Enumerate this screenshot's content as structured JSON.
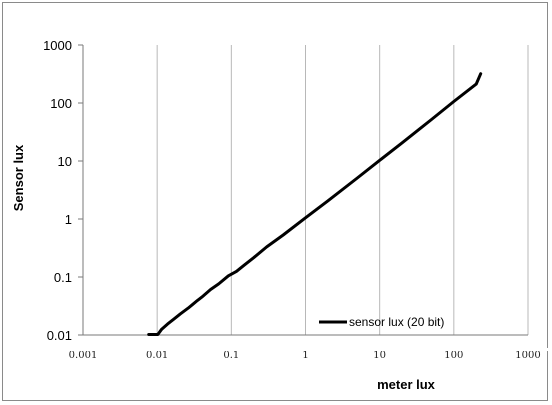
{
  "chart_data": {
    "type": "line",
    "title": "",
    "xlabel": "meter lux",
    "ylabel": "Sensor lux",
    "x_scale": "log",
    "y_scale": "log",
    "xlim": [
      0.001,
      1000
    ],
    "ylim": [
      0.01,
      1000
    ],
    "x_ticks": [
      "0.001",
      "0.01",
      "0.1",
      "1",
      "10",
      "100",
      "1000"
    ],
    "y_ticks": [
      "0.01",
      "0.1",
      "1",
      "10",
      "100",
      "1000"
    ],
    "grid": "vertical",
    "legend_position": "bottom-right",
    "series": [
      {
        "name": "sensor lux (20 bit)",
        "color": "#000000",
        "x": [
          0.0077,
          0.0102,
          0.0115,
          0.0138,
          0.0168,
          0.0205,
          0.0262,
          0.0302,
          0.035,
          0.0398,
          0.0525,
          0.0676,
          0.0912,
          0.117,
          0.148,
          0.2,
          0.3,
          0.5,
          1,
          2,
          5,
          10,
          20,
          50,
          100,
          200,
          230
        ],
        "y": [
          0.0102,
          0.0102,
          0.0126,
          0.0154,
          0.0188,
          0.0231,
          0.0291,
          0.0338,
          0.0395,
          0.0448,
          0.061,
          0.076,
          0.105,
          0.125,
          0.159,
          0.215,
          0.33,
          0.53,
          1.05,
          2.05,
          5.1,
          10.3,
          20.5,
          52,
          106,
          212,
          320
        ]
      }
    ]
  }
}
